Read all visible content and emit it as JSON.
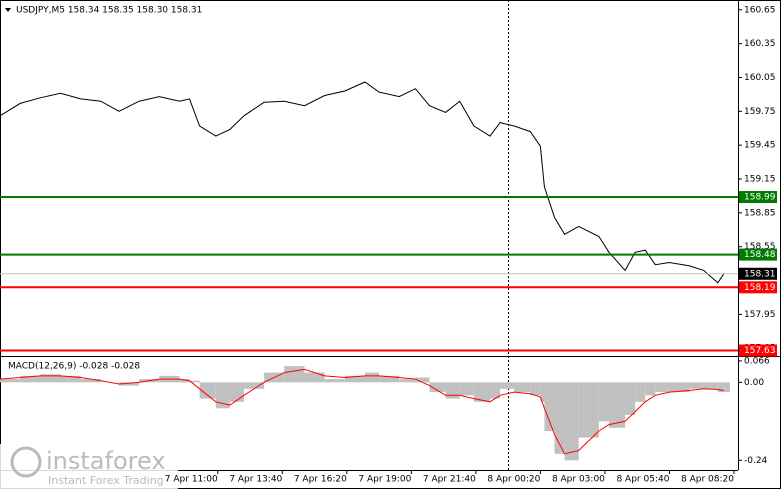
{
  "chart_data": [
    {
      "type": "line",
      "title": "USDJPY,M5  158.34 158.35 158.30 158.31",
      "x": [
        0,
        10,
        20,
        30,
        40,
        50,
        59,
        69,
        79,
        89,
        94,
        99,
        107,
        114,
        121,
        131,
        141,
        151,
        161,
        171,
        181,
        188,
        198,
        206,
        213,
        221,
        228,
        235,
        243,
        248,
        255,
        263,
        268,
        270,
        275,
        280,
        287,
        297,
        302,
        310,
        315,
        320,
        325,
        332,
        342,
        349,
        356,
        359
      ],
      "series": [
        {
          "color": "#000000",
          "values": [
            159.71,
            159.82,
            159.87,
            159.91,
            159.86,
            159.84,
            159.75,
            159.84,
            159.88,
            159.84,
            159.86,
            159.62,
            159.53,
            159.59,
            159.71,
            159.83,
            159.84,
            159.8,
            159.89,
            159.93,
            160.01,
            159.92,
            159.88,
            159.95,
            159.8,
            159.74,
            159.84,
            159.62,
            159.53,
            159.65,
            159.62,
            159.57,
            159.44,
            159.08,
            158.81,
            158.66,
            158.73,
            158.64,
            158.5,
            158.34,
            158.5,
            158.52,
            158.39,
            158.41,
            158.38,
            158.34,
            158.23,
            158.31
          ]
        }
      ],
      "xlim": [
        0,
        366
      ],
      "xticks": [
        {
          "value": 108,
          "label": "7 Apr 11:00"
        },
        {
          "value": 140,
          "label": "7 Apr 13:40"
        },
        {
          "value": 172,
          "label": "7 Apr 16:20"
        },
        {
          "value": 204,
          "label": "7 Apr 19:00"
        },
        {
          "value": 236,
          "label": "7 Apr 21:40"
        },
        {
          "value": 268,
          "label": "8 Apr 00:20"
        },
        {
          "value": 300,
          "label": "8 Apr 03:00"
        },
        {
          "value": 332,
          "label": "8 Apr 05:40"
        },
        {
          "value": 364,
          "label": "8 Apr 08:20"
        }
      ],
      "ylim": [
        157.59,
        160.71
      ],
      "yticks": [
        160.65,
        160.35,
        160.05,
        159.75,
        159.45,
        159.15,
        158.85,
        158.55,
        157.95,
        157.65
      ],
      "levels": [
        {
          "value": 158.99,
          "color": "#007a00"
        },
        {
          "value": 158.48,
          "color": "#007a00"
        },
        {
          "value": 158.19,
          "color": "#ff0000"
        },
        {
          "value": 157.63,
          "color": "#ff0000"
        }
      ],
      "last_price": {
        "value": 158.31,
        "color": "#000000"
      }
    },
    {
      "type": "macd",
      "title": "MACD(12,26,9) -0.028 -0.028",
      "x": [
        0,
        10,
        20,
        30,
        40,
        50,
        59,
        69,
        79,
        89,
        94,
        99,
        107,
        114,
        121,
        131,
        141,
        151,
        161,
        171,
        181,
        188,
        198,
        206,
        213,
        221,
        228,
        235,
        243,
        248,
        255,
        263,
        268,
        270,
        275,
        280,
        287,
        297,
        302,
        310,
        315,
        320,
        325,
        332,
        342,
        349,
        356,
        359
      ],
      "histogram": {
        "color": "#c0c0c0",
        "values": [
          0.01,
          0.02,
          0.025,
          0.02,
          0.01,
          0,
          -0.01,
          0.01,
          0.02,
          0.01,
          0.005,
          -0.05,
          -0.08,
          -0.06,
          -0.02,
          0.03,
          0.05,
          0.03,
          0.01,
          0.02,
          0.03,
          0.02,
          0.01,
          0.015,
          -0.03,
          -0.05,
          -0.04,
          -0.06,
          -0.05,
          -0.02,
          -0.03,
          -0.04,
          -0.06,
          -0.15,
          -0.22,
          -0.24,
          -0.17,
          -0.12,
          -0.14,
          -0.1,
          -0.06,
          -0.04,
          -0.03,
          -0.03,
          -0.02,
          -0.02,
          -0.03,
          -0.03
        ]
      },
      "signal": {
        "color": "#ff0000",
        "values": [
          0.01,
          0.015,
          0.02,
          0.02,
          0.015,
          0.005,
          -0.005,
          0,
          0.01,
          0.01,
          0.005,
          -0.02,
          -0.06,
          -0.07,
          -0.04,
          0,
          0.03,
          0.04,
          0.02,
          0.015,
          0.02,
          0.02,
          0.015,
          0.01,
          -0.01,
          -0.04,
          -0.04,
          -0.05,
          -0.06,
          -0.04,
          -0.03,
          -0.035,
          -0.045,
          -0.08,
          -0.16,
          -0.22,
          -0.21,
          -0.15,
          -0.13,
          -0.12,
          -0.09,
          -0.06,
          -0.04,
          -0.03,
          -0.025,
          -0.02,
          -0.022,
          -0.025
        ]
      },
      "xlim": [
        0,
        366
      ],
      "ylim": [
        -0.27,
        0.075
      ],
      "yticks": [
        0.066,
        {
          "value": 0,
          "label": "0.00"
        },
        -0.24
      ]
    }
  ],
  "watermark": {
    "brand": "instaforex",
    "tagline": "Instant Forex Trading"
  }
}
